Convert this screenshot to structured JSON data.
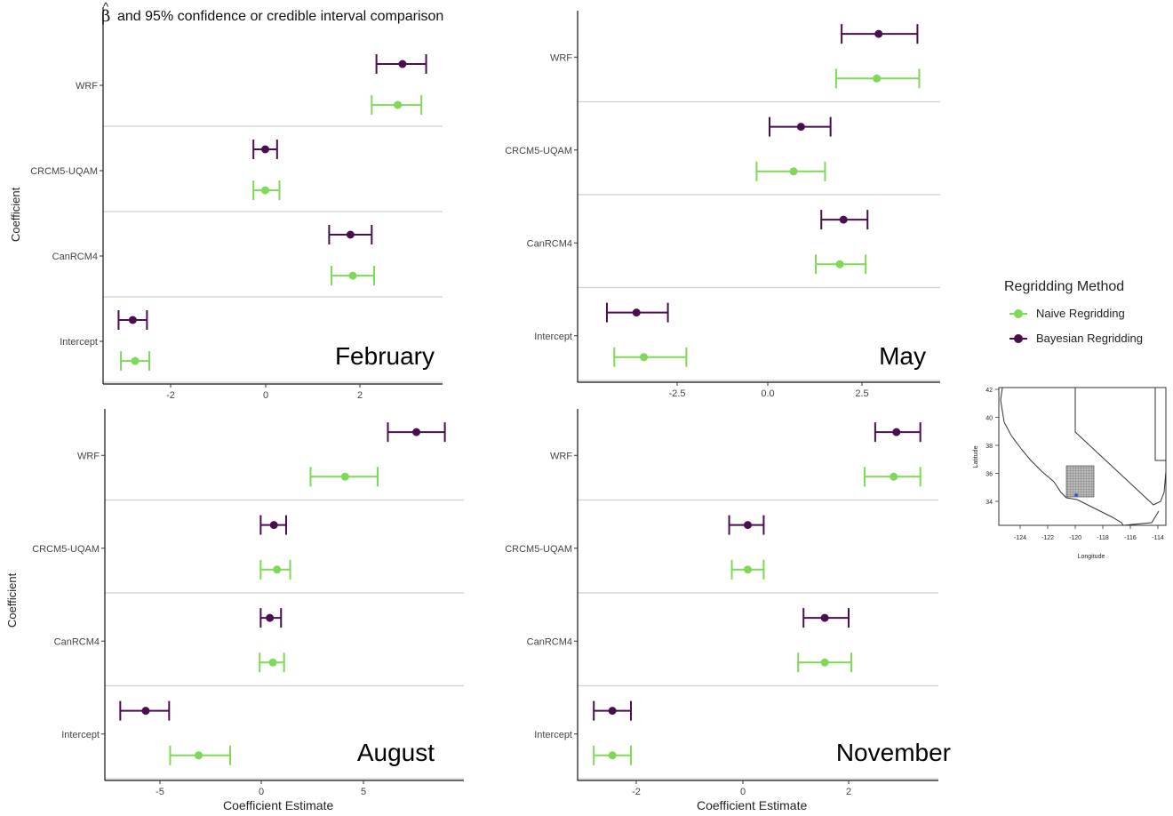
{
  "figure": {
    "title_symbol": "β",
    "title_hat": "^",
    "title": "and 95% confidence or credible interval comparison",
    "y_axis_label": "Coefficient",
    "x_axis_label": "Coefficient Estimate",
    "legend": {
      "title": "Regridding Method",
      "items": [
        {
          "label": "Naive Regridding",
          "color": "#7ed957"
        },
        {
          "label": "Bayesian Regridding",
          "color": "#4a0e4e"
        }
      ]
    },
    "inset_map": {
      "x_label": "Longitude",
      "y_label": "Latitude",
      "x_ticks": [
        "-124",
        "-122",
        "-120",
        "-118",
        "-116",
        "-114"
      ],
      "y_ticks": [
        "34",
        "36",
        "38",
        "40",
        "42"
      ]
    }
  },
  "chart_data": [
    {
      "type": "scatter",
      "panel": "February",
      "categories": [
        "WRF",
        "CRCM5-UQAM",
        "CanRCM4",
        "Intercept"
      ],
      "x_ticks": [
        "-2",
        "0",
        "2"
      ],
      "xlim": [
        -3.4,
        3.75
      ],
      "series": [
        {
          "name": "Bayesian Regridding",
          "color": "#4a0e4e",
          "estimate": [
            2.9,
            0.0,
            1.8,
            -2.8
          ],
          "lower": [
            2.35,
            -0.25,
            1.35,
            -3.1
          ],
          "upper": [
            3.4,
            0.25,
            2.25,
            -2.5
          ]
        },
        {
          "name": "Naive Regridding",
          "color": "#7ed957",
          "estimate": [
            2.8,
            0.0,
            1.85,
            -2.75
          ],
          "lower": [
            2.25,
            -0.25,
            1.4,
            -3.05
          ],
          "upper": [
            3.3,
            0.3,
            2.3,
            -2.45
          ]
        }
      ]
    },
    {
      "type": "scatter",
      "panel": "May",
      "categories": [
        "WRF",
        "CRCM5-UQAM",
        "CanRCM4",
        "Intercept"
      ],
      "x_ticks": [
        "-2.5",
        "0.0",
        "2.5"
      ],
      "xlim": [
        -5.2,
        4.4
      ],
      "series": [
        {
          "name": "Bayesian Regridding",
          "color": "#4a0e4e",
          "estimate": [
            2.95,
            0.85,
            2.0,
            -3.6
          ],
          "lower": [
            1.95,
            0.0,
            1.4,
            -4.4
          ],
          "upper": [
            4.0,
            1.65,
            2.65,
            -2.75
          ]
        },
        {
          "name": "Naive Regridding",
          "color": "#7ed957",
          "estimate": [
            2.9,
            0.65,
            1.9,
            -3.4
          ],
          "lower": [
            1.8,
            -0.35,
            1.25,
            -4.2
          ],
          "upper": [
            4.05,
            1.5,
            2.6,
            -2.25
          ]
        }
      ]
    },
    {
      "type": "scatter",
      "panel": "August",
      "categories": [
        "WRF",
        "CRCM5-UQAM",
        "CanRCM4",
        "Intercept"
      ],
      "x_ticks": [
        "-5",
        "0",
        "5"
      ],
      "xlim": [
        -7.6,
        9.8
      ],
      "series": [
        {
          "name": "Bayesian Regridding",
          "color": "#4a0e4e",
          "estimate": [
            7.6,
            0.6,
            0.4,
            -5.7
          ],
          "lower": [
            6.2,
            -0.05,
            -0.05,
            -6.95
          ],
          "upper": [
            9.0,
            1.2,
            0.95,
            -4.55
          ]
        },
        {
          "name": "Naive Regridding",
          "color": "#7ed957",
          "estimate": [
            4.1,
            0.75,
            0.55,
            -3.1
          ],
          "lower": [
            2.4,
            -0.05,
            -0.1,
            -4.5
          ],
          "upper": [
            5.7,
            1.4,
            1.1,
            -1.55
          ]
        }
      ]
    },
    {
      "type": "scatter",
      "panel": "November",
      "categories": [
        "WRF",
        "CRCM5-UQAM",
        "CanRCM4",
        "Intercept"
      ],
      "x_ticks": [
        "-2",
        "0",
        "2"
      ],
      "xlim": [
        -3.05,
        3.7
      ],
      "series": [
        {
          "name": "Bayesian Regridding",
          "color": "#4a0e4e",
          "estimate": [
            2.9,
            0.1,
            1.55,
            -2.45
          ],
          "lower": [
            2.5,
            -0.25,
            1.15,
            -2.8
          ],
          "upper": [
            3.35,
            0.4,
            2.0,
            -2.1
          ]
        },
        {
          "name": "Naive Regridding",
          "color": "#7ed957",
          "estimate": [
            2.85,
            0.1,
            1.55,
            -2.45
          ],
          "lower": [
            2.3,
            -0.2,
            1.05,
            -2.8
          ],
          "upper": [
            3.35,
            0.4,
            2.05,
            -2.1
          ]
        }
      ]
    }
  ]
}
